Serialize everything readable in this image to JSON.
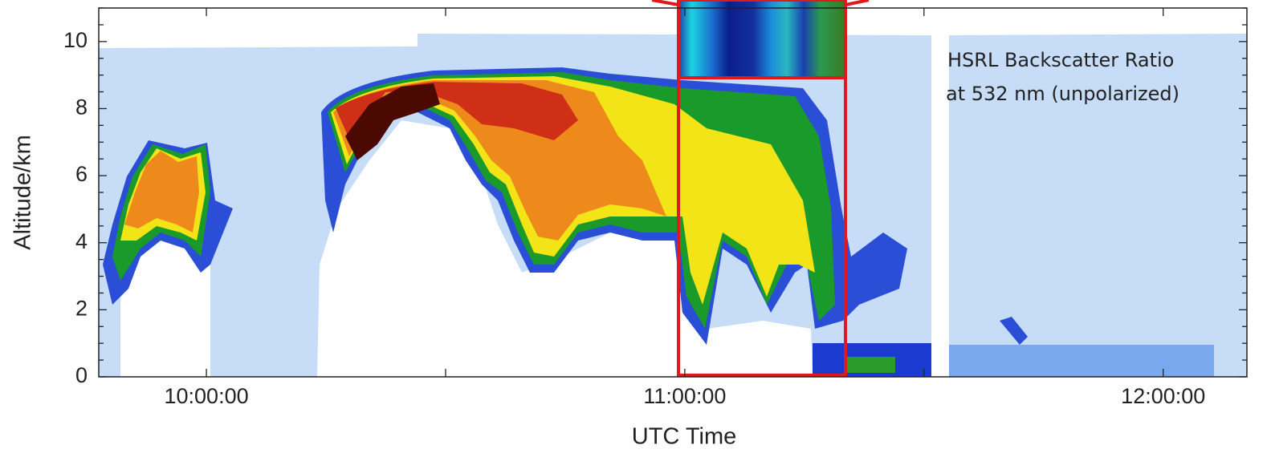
{
  "chart_data": {
    "type": "curtain",
    "xlabel": "UTC Time",
    "ylabel": "Altitude/km",
    "annotation": [
      "HSRL Backscatter Ratio",
      "at 532 nm (unpolarized)"
    ],
    "xlim": [
      "09:46:30",
      "12:10:30"
    ],
    "xticks": [
      "10:00:00",
      "11:00:00",
      "12:00:00"
    ],
    "ylim": [
      0,
      11
    ],
    "yticks": [
      0,
      2,
      4,
      6,
      8,
      10
    ]
  }
}
